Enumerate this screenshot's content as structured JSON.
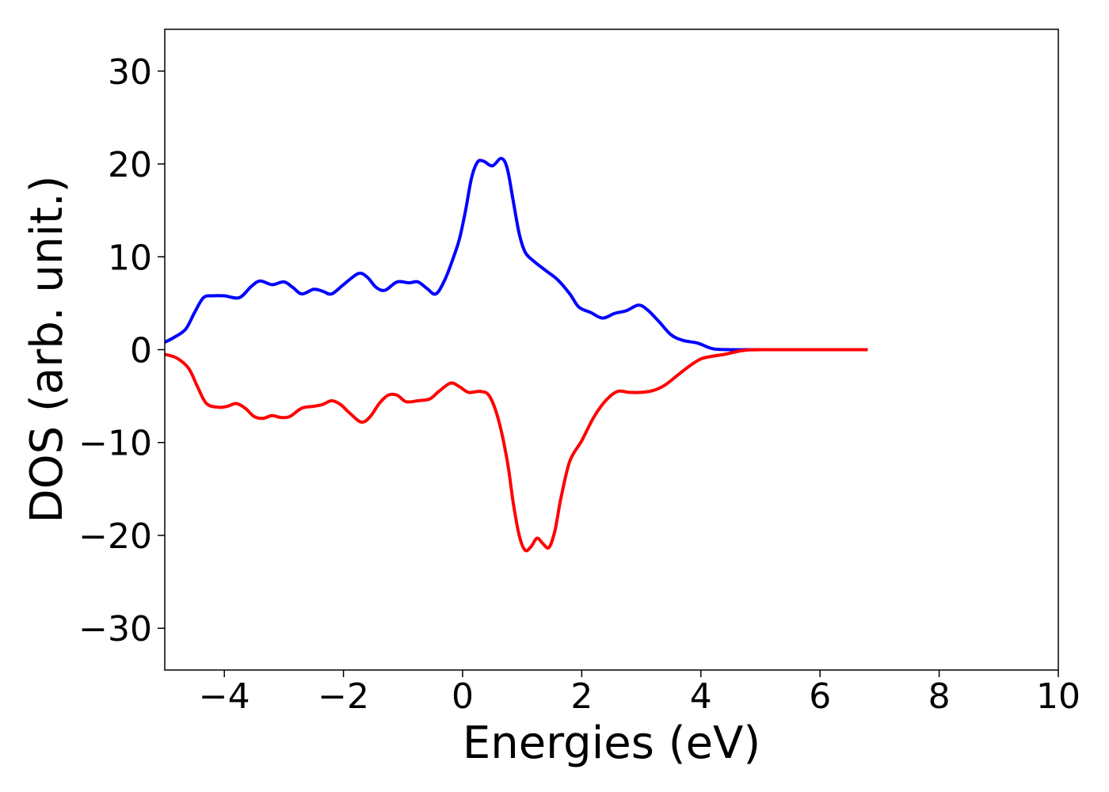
{
  "chart_data": {
    "type": "line",
    "title": "",
    "xlabel": "Energies (eV)",
    "ylabel": "DOS (arb. unit.)",
    "xlim": [
      -5,
      10
    ],
    "ylim": [
      -34.5,
      34.5
    ],
    "xticks": [
      -4,
      -2,
      0,
      2,
      4,
      6,
      8,
      10
    ],
    "xtick_labels": [
      "−4",
      "−2",
      "0",
      "2",
      "4",
      "6",
      "8",
      "10"
    ],
    "yticks": [
      -30,
      -20,
      -10,
      0,
      10,
      20,
      30
    ],
    "ytick_labels": [
      "−30",
      "−20",
      "−10",
      "0",
      "10",
      "20",
      "30"
    ],
    "grid": false,
    "legend": "none",
    "series": [
      {
        "color": "#0000ff",
        "points": [
          [
            -5.0,
            0.8
          ],
          [
            -4.85,
            1.3
          ],
          [
            -4.65,
            2.2
          ],
          [
            -4.5,
            4.0
          ],
          [
            -4.35,
            5.6
          ],
          [
            -4.2,
            5.8
          ],
          [
            -4.0,
            5.8
          ],
          [
            -3.75,
            5.6
          ],
          [
            -3.55,
            6.8
          ],
          [
            -3.4,
            7.4
          ],
          [
            -3.2,
            7.0
          ],
          [
            -3.0,
            7.3
          ],
          [
            -2.85,
            6.7
          ],
          [
            -2.7,
            6.0
          ],
          [
            -2.5,
            6.5
          ],
          [
            -2.35,
            6.3
          ],
          [
            -2.2,
            6.0
          ],
          [
            -2.0,
            7.0
          ],
          [
            -1.75,
            8.2
          ],
          [
            -1.6,
            7.8
          ],
          [
            -1.45,
            6.7
          ],
          [
            -1.3,
            6.4
          ],
          [
            -1.1,
            7.3
          ],
          [
            -0.9,
            7.2
          ],
          [
            -0.75,
            7.3
          ],
          [
            -0.6,
            6.6
          ],
          [
            -0.45,
            6.0
          ],
          [
            -0.3,
            7.5
          ],
          [
            -0.15,
            10.0
          ],
          [
            -0.05,
            12.0
          ],
          [
            0.05,
            15.0
          ],
          [
            0.15,
            18.5
          ],
          [
            0.25,
            20.2
          ],
          [
            0.35,
            20.3
          ],
          [
            0.5,
            19.8
          ],
          [
            0.65,
            20.6
          ],
          [
            0.75,
            19.5
          ],
          [
            0.85,
            16.0
          ],
          [
            0.95,
            12.5
          ],
          [
            1.05,
            10.5
          ],
          [
            1.2,
            9.5
          ],
          [
            1.4,
            8.5
          ],
          [
            1.6,
            7.5
          ],
          [
            1.8,
            6.0
          ],
          [
            1.95,
            4.6
          ],
          [
            2.15,
            4.0
          ],
          [
            2.35,
            3.4
          ],
          [
            2.55,
            3.9
          ],
          [
            2.75,
            4.2
          ],
          [
            2.95,
            4.8
          ],
          [
            3.1,
            4.3
          ],
          [
            3.3,
            3.0
          ],
          [
            3.5,
            1.6
          ],
          [
            3.7,
            1.0
          ],
          [
            3.95,
            0.7
          ],
          [
            4.2,
            0.1
          ],
          [
            4.5,
            0.0
          ],
          [
            5.0,
            0.0
          ],
          [
            6.0,
            0.0
          ],
          [
            6.8,
            0.0
          ]
        ]
      },
      {
        "color": "#ff0000",
        "points": [
          [
            -5.0,
            -0.5
          ],
          [
            -4.8,
            -0.9
          ],
          [
            -4.6,
            -2.0
          ],
          [
            -4.45,
            -4.0
          ],
          [
            -4.3,
            -5.8
          ],
          [
            -4.1,
            -6.2
          ],
          [
            -3.95,
            -6.1
          ],
          [
            -3.8,
            -5.8
          ],
          [
            -3.65,
            -6.3
          ],
          [
            -3.5,
            -7.2
          ],
          [
            -3.35,
            -7.4
          ],
          [
            -3.2,
            -7.1
          ],
          [
            -3.05,
            -7.3
          ],
          [
            -2.9,
            -7.2
          ],
          [
            -2.7,
            -6.3
          ],
          [
            -2.5,
            -6.1
          ],
          [
            -2.35,
            -5.9
          ],
          [
            -2.2,
            -5.5
          ],
          [
            -2.05,
            -5.9
          ],
          [
            -1.9,
            -6.8
          ],
          [
            -1.7,
            -7.8
          ],
          [
            -1.55,
            -7.2
          ],
          [
            -1.4,
            -5.8
          ],
          [
            -1.25,
            -4.9
          ],
          [
            -1.1,
            -4.9
          ],
          [
            -0.95,
            -5.6
          ],
          [
            -0.75,
            -5.5
          ],
          [
            -0.55,
            -5.3
          ],
          [
            -0.4,
            -4.5
          ],
          [
            -0.2,
            -3.6
          ],
          [
            -0.05,
            -4.0
          ],
          [
            0.1,
            -4.6
          ],
          [
            0.3,
            -4.5
          ],
          [
            0.45,
            -5.0
          ],
          [
            0.6,
            -7.5
          ],
          [
            0.75,
            -12.0
          ],
          [
            0.85,
            -16.5
          ],
          [
            0.95,
            -20.0
          ],
          [
            1.05,
            -21.6
          ],
          [
            1.15,
            -21.2
          ],
          [
            1.25,
            -20.3
          ],
          [
            1.35,
            -20.9
          ],
          [
            1.45,
            -21.3
          ],
          [
            1.55,
            -19.5
          ],
          [
            1.65,
            -16.0
          ],
          [
            1.8,
            -12.0
          ],
          [
            2.0,
            -9.8
          ],
          [
            2.2,
            -7.3
          ],
          [
            2.4,
            -5.5
          ],
          [
            2.6,
            -4.5
          ],
          [
            2.8,
            -4.6
          ],
          [
            3.0,
            -4.6
          ],
          [
            3.2,
            -4.4
          ],
          [
            3.4,
            -3.8
          ],
          [
            3.6,
            -2.8
          ],
          [
            3.8,
            -1.8
          ],
          [
            4.0,
            -1.0
          ],
          [
            4.2,
            -0.7
          ],
          [
            4.4,
            -0.5
          ],
          [
            4.7,
            -0.1
          ],
          [
            5.0,
            0.0
          ],
          [
            6.0,
            0.0
          ],
          [
            6.8,
            0.0
          ]
        ]
      }
    ]
  }
}
